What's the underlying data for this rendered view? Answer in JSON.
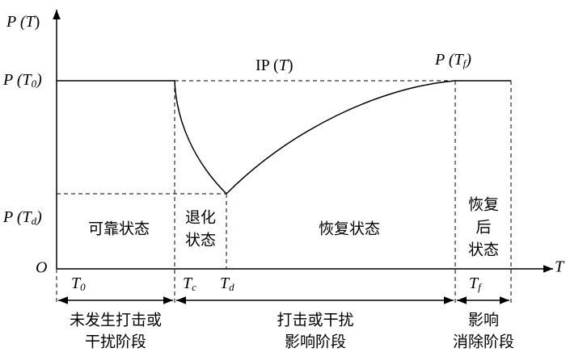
{
  "axis": {
    "y_label": {
      "text": "P (",
      "var": "T",
      "close": ")"
    },
    "x_label": "T",
    "origin": "O"
  },
  "levels": [
    {
      "text": "P (T",
      "sub": "0",
      "close": ")"
    },
    {
      "text": "P (T",
      "sub": "d",
      "close": ")"
    }
  ],
  "curve": {
    "label": {
      "text": "IP (",
      "var": "T",
      "close": ")"
    },
    "end_label": {
      "text": "P (T",
      "sub": "f",
      "close": ")"
    }
  },
  "times": [
    {
      "text": "T",
      "sub": "0"
    },
    {
      "text": "T",
      "sub": "c"
    },
    {
      "text": "T",
      "sub": "d"
    },
    {
      "text": "T",
      "sub": "f"
    }
  ],
  "states": [
    [
      "可靠状态"
    ],
    [
      "退化",
      "状态"
    ],
    [
      "恢复状态"
    ],
    [
      "恢复",
      "后",
      "状态"
    ]
  ],
  "phases": [
    [
      "未发生打击或",
      "干扰阶段"
    ],
    [
      "打击或干扰",
      "影响阶段"
    ],
    [
      "影响",
      "消除阶段"
    ]
  ]
}
